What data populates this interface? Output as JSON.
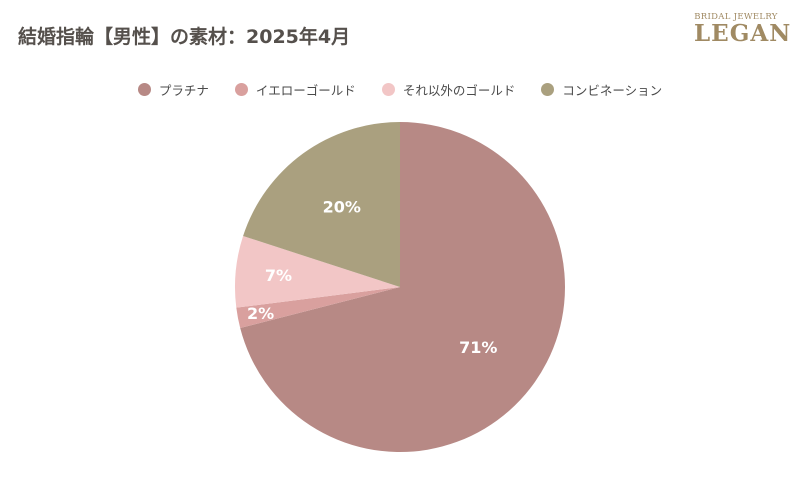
{
  "title": "結婚指輪【男性】の素材：2025年4月",
  "logo": {
    "sub": "BRIDAL JEWELRY",
    "main": "LEGAN"
  },
  "chart_data": {
    "type": "pie",
    "title": "結婚指輪【男性】の素材：2025年4月",
    "legend_position": "top",
    "start_angle": "12 o'clock, clockwise",
    "slices": [
      {
        "label": "プラチナ",
        "value": 71,
        "display": "71%",
        "color": "#b78985"
      },
      {
        "label": "イエローゴールド",
        "value": 2,
        "display": "2%",
        "color": "#d9a09e"
      },
      {
        "label": "それ以外のゴールド",
        "value": 7,
        "display": "7%",
        "color": "#f2c6c6"
      },
      {
        "label": "コンビネーション",
        "value": 20,
        "display": "20%",
        "color": "#aaa07f"
      }
    ]
  }
}
